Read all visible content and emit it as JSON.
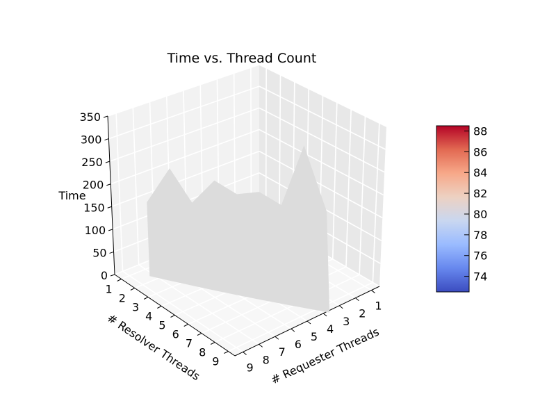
{
  "chart_data": {
    "type": "surface3d",
    "title": "Time vs. Thread Count",
    "xlabel": "# Requester Threads",
    "ylabel": "# Resolver Threads",
    "zlabel": "Time",
    "x_ticks": [
      "1",
      "2",
      "3",
      "4",
      "5",
      "6",
      "7",
      "8",
      "9"
    ],
    "y_ticks": [
      "1",
      "2",
      "3",
      "4",
      "5",
      "6",
      "7",
      "8",
      "9"
    ],
    "z_ticks": [
      "0",
      "50",
      "100",
      "150",
      "200",
      "250",
      "300",
      "350"
    ],
    "zlim": [
      0,
      350
    ],
    "grid": true,
    "surface_color": "#dcdcdc",
    "surface_profile": [
      {
        "y": 1,
        "z": 150
      },
      {
        "y": 2,
        "z": 235
      },
      {
        "y": 3,
        "z": 170
      },
      {
        "y": 4,
        "z": 230
      },
      {
        "y": 5,
        "z": 210
      },
      {
        "y": 6,
        "z": 225
      },
      {
        "y": 7,
        "z": 205
      },
      {
        "y": 8,
        "z": 345
      },
      {
        "y": 9,
        "z": 210
      }
    ],
    "colorbar": {
      "ticks": [
        "74",
        "76",
        "78",
        "80",
        "82",
        "84",
        "86",
        "88"
      ],
      "range": [
        72.5,
        88.5
      ],
      "colormap": "coolwarm",
      "colors": [
        "#3b4cc0",
        "#6788ee",
        "#9abbff",
        "#c9d7f0",
        "#edd1c2",
        "#f7a889",
        "#e26952",
        "#b40426"
      ]
    }
  }
}
